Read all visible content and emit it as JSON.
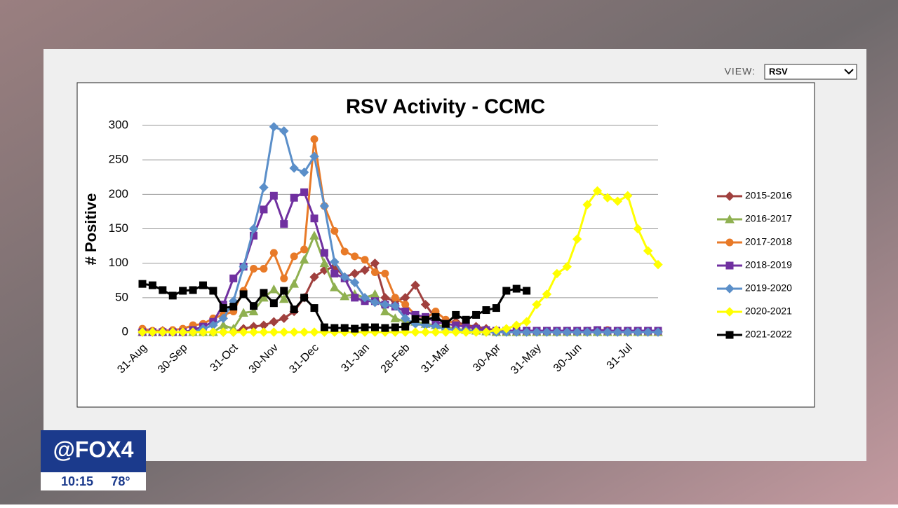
{
  "ui": {
    "view_label": "VIEW:",
    "view_value": "RSV",
    "logo": "@FOX4",
    "time": "10:15",
    "temp": "78°"
  },
  "chart_data": {
    "type": "line",
    "title": "RSV Activity - CCMC",
    "y_label": "# Positive",
    "categories": [
      "31-Aug",
      null,
      null,
      null,
      "30-Sep",
      null,
      null,
      null,
      null,
      "31-Oct",
      null,
      null,
      null,
      "30-Nov",
      null,
      null,
      null,
      "31-Dec",
      null,
      null,
      null,
      null,
      "31-Jan",
      null,
      null,
      null,
      "28-Feb",
      null,
      null,
      null,
      "31-Mar",
      null,
      null,
      null,
      null,
      "30-Apr",
      null,
      null,
      null,
      "31-May",
      null,
      null,
      null,
      "30-Jun",
      null,
      null,
      null,
      null,
      "31-Jul",
      null,
      null,
      null
    ],
    "ylim": [
      0,
      300
    ],
    "yticks": [
      0,
      50,
      100,
      150,
      200,
      250,
      300
    ],
    "grid": true,
    "series": [
      {
        "name": "2015-2016",
        "color": "#a0403e",
        "marker": "diamond",
        "values": [
          3,
          0,
          2,
          0,
          0,
          0,
          0,
          0,
          0,
          0,
          5,
          8,
          10,
          15,
          20,
          30,
          50,
          80,
          90,
          95,
          80,
          85,
          90,
          100,
          50,
          45,
          50,
          68,
          40,
          20,
          15,
          15,
          10,
          8,
          5,
          3,
          2,
          2,
          1,
          1,
          1,
          1,
          1,
          1,
          1,
          1,
          1,
          1,
          1,
          1,
          1,
          1
        ]
      },
      {
        "name": "2016-2017",
        "color": "#8fb050",
        "marker": "triangle",
        "values": [
          0,
          0,
          0,
          0,
          0,
          0,
          0,
          0,
          10,
          5,
          28,
          30,
          50,
          62,
          48,
          70,
          105,
          140,
          100,
          65,
          52,
          55,
          50,
          55,
          30,
          20,
          15,
          15,
          12,
          10,
          8,
          5,
          3,
          2,
          1,
          0,
          0,
          0,
          0,
          0,
          0,
          0,
          0,
          0,
          0,
          0,
          0,
          0,
          0,
          0,
          0,
          0
        ]
      },
      {
        "name": "2017-2018",
        "color": "#e87a28",
        "marker": "circle",
        "values": [
          5,
          2,
          2,
          3,
          5,
          10,
          12,
          20,
          25,
          30,
          60,
          92,
          92,
          115,
          78,
          110,
          120,
          280,
          183,
          147,
          117,
          110,
          105,
          87,
          85,
          50,
          40,
          25,
          20,
          30,
          18,
          12,
          8,
          5,
          3,
          2,
          1,
          1,
          1,
          1,
          1,
          1,
          1,
          1,
          1,
          3,
          3,
          1,
          1,
          1,
          0,
          0
        ]
      },
      {
        "name": "2018-2019",
        "color": "#7030a0",
        "marker": "square",
        "values": [
          0,
          0,
          0,
          0,
          0,
          3,
          8,
          15,
          40,
          78,
          95,
          140,
          178,
          198,
          157,
          195,
          203,
          165,
          115,
          85,
          78,
          50,
          45,
          45,
          40,
          37,
          30,
          25,
          22,
          15,
          12,
          10,
          8,
          5,
          3,
          2,
          2,
          2,
          2,
          2,
          2,
          2,
          2,
          2,
          2,
          3,
          2,
          2,
          2,
          2,
          2,
          2
        ]
      },
      {
        "name": "2019-2020",
        "color": "#5b8fc9",
        "marker": "diamond",
        "values": [
          0,
          0,
          0,
          0,
          0,
          0,
          5,
          10,
          20,
          45,
          95,
          150,
          210,
          298,
          292,
          238,
          232,
          255,
          183,
          102,
          80,
          72,
          50,
          43,
          40,
          38,
          20,
          12,
          10,
          8,
          5,
          3,
          2,
          1,
          0,
          0,
          0,
          0,
          0,
          0,
          0,
          0,
          0,
          0,
          0,
          0,
          0,
          0,
          0,
          0,
          0,
          0
        ]
      },
      {
        "name": "2020-2021",
        "color": "#ffff00",
        "marker": "diamond",
        "values": [
          0,
          0,
          0,
          0,
          0,
          0,
          0,
          0,
          0,
          0,
          0,
          0,
          0,
          0,
          0,
          0,
          0,
          0,
          0,
          0,
          0,
          0,
          0,
          0,
          0,
          0,
          0,
          0,
          0,
          0,
          0,
          0,
          0,
          0,
          0,
          3,
          5,
          10,
          15,
          40,
          55,
          85,
          95,
          135,
          185,
          205,
          195,
          190,
          198,
          150,
          118,
          98
        ]
      },
      {
        "name": "2021-2022",
        "color": "#000000",
        "marker": "square",
        "values": [
          70,
          68,
          61,
          53,
          60,
          61,
          68,
          60,
          35,
          37,
          55,
          38,
          57,
          42,
          60,
          33,
          50,
          35,
          7,
          6,
          6,
          5,
          7,
          7,
          6,
          7,
          8,
          19,
          18,
          22,
          12,
          25,
          18,
          25,
          32,
          35,
          60,
          63,
          60,
          null,
          null,
          null,
          null,
          null,
          null,
          null,
          null,
          null,
          null,
          null,
          null,
          null
        ]
      }
    ]
  }
}
